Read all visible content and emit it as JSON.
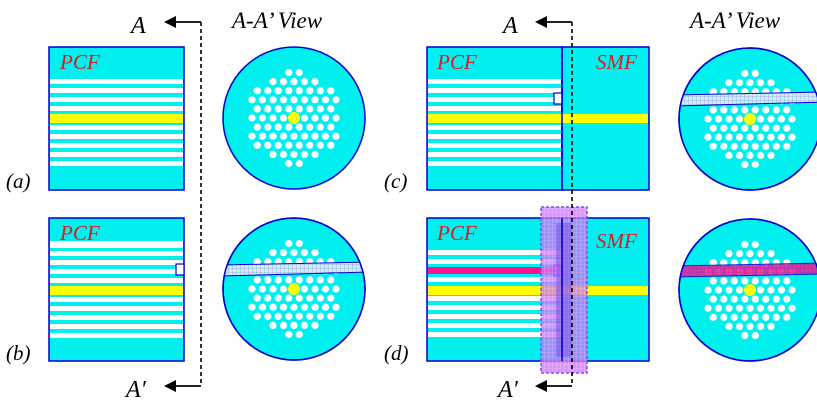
{
  "colors": {
    "cyan": "#00f0f0",
    "yellow": "#ffff00",
    "outline": "#0000cc",
    "red_text": "#cc2222",
    "magenta": "#ff66ff",
    "pink_channel": "#ff1493",
    "purple_overlay": "#7b52e6"
  },
  "labels": {
    "section_a": "A",
    "section_a_prime": "A′",
    "view_left": "A-A’ View",
    "view_right": "A-A’ View",
    "pcf": "PCF",
    "smf": "SMF",
    "panel_a": "(a)",
    "panel_b": "(b)",
    "panel_c": "(c)",
    "panel_d": "(d)"
  }
}
